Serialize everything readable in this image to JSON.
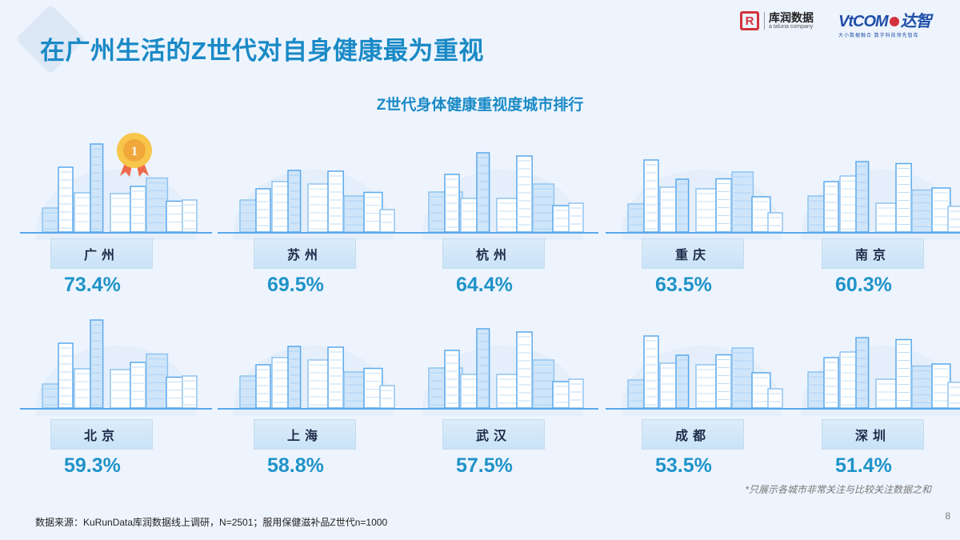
{
  "header": {
    "title": "在广州生活的Z世代对自身健康最为重视",
    "logo_kr": {
      "mark": "R",
      "cn": "库润数据",
      "en": "a taluna company"
    },
    "logo_vt": {
      "main_left": "VtCOM",
      "main_right": "达智",
      "sub": "大小数据融合 数字科技领先智库"
    }
  },
  "subtitle": "Z世代身体健康重视度城市排行",
  "cities": [
    {
      "name": "广州",
      "value": "73.4%",
      "rank_badge": "1"
    },
    {
      "name": "苏州",
      "value": "69.5%"
    },
    {
      "name": "杭州",
      "value": "64.4%"
    },
    {
      "name": "重庆",
      "value": "63.5%"
    },
    {
      "name": "南京",
      "value": "60.3%"
    },
    {
      "name": "北京",
      "value": "59.3%"
    },
    {
      "name": "上海",
      "value": "58.8%"
    },
    {
      "name": "武汉",
      "value": "57.5%"
    },
    {
      "name": "成都",
      "value": "53.5%"
    },
    {
      "name": "深圳",
      "value": "51.4%"
    }
  ],
  "footnote": "*只展示各城市非常关注与比较关注数据之和",
  "source": "数据来源：KuRunData库润数据线上调研，N=2501；服用保健滋补品Z世代n=1000",
  "page_number": "8",
  "colors": {
    "accent": "#1a8ac6",
    "value": "#1f93c9",
    "label_text": "#1d2a48",
    "background": "#eef4fd"
  },
  "chart_data": {
    "type": "bar",
    "title": "Z世代身体健康重视度城市排行",
    "categories": [
      "广州",
      "苏州",
      "杭州",
      "重庆",
      "南京",
      "北京",
      "上海",
      "武汉",
      "成都",
      "深圳"
    ],
    "values": [
      73.4,
      69.5,
      64.4,
      63.5,
      60.3,
      59.3,
      58.8,
      57.5,
      53.5,
      51.4
    ],
    "unit": "%",
    "xlabel": "",
    "ylabel": "",
    "note": "*只展示各城市非常关注与比较关注数据之和"
  }
}
